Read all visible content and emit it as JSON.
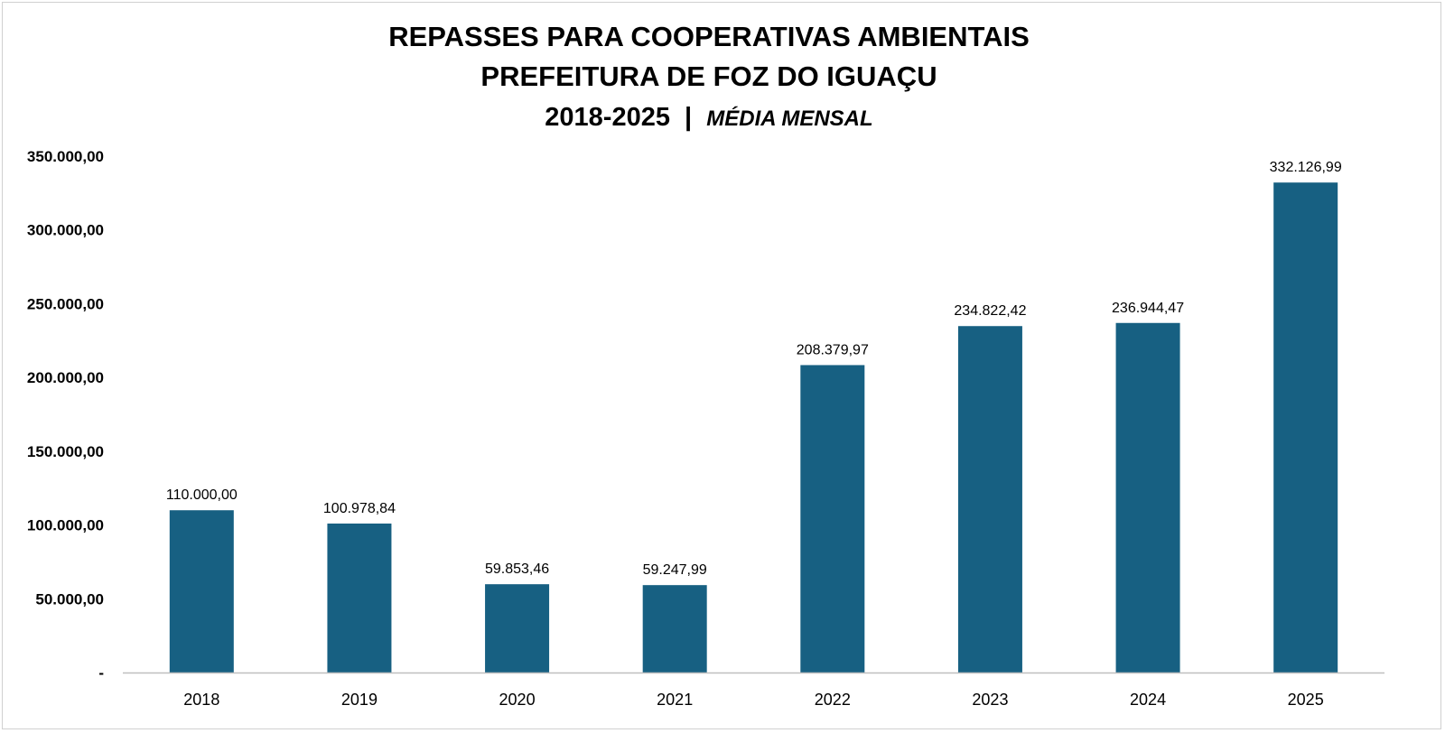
{
  "chart_data": {
    "type": "bar",
    "title": "REPASSES PARA COOPERATIVAS AMBIENTAIS",
    "subtitle": "PREFEITURA DE FOZ DO IGUAÇU",
    "subtitle2_main": "2018-2025",
    "subtitle2_sep": "|",
    "subtitle2_italic": "MÉDIA MENSAL",
    "categories": [
      "2018",
      "2019",
      "2020",
      "2021",
      "2022",
      "2023",
      "2024",
      "2025"
    ],
    "values": [
      110000.0,
      100978.84,
      59853.46,
      59247.99,
      208379.97,
      234822.42,
      236944.47,
      332126.99
    ],
    "data_labels": [
      "110.000,00",
      "100.978,84",
      "59.853,46",
      "59.247,99",
      "208.379,97",
      "234.822,42",
      "236.944,47",
      "332.126,99"
    ],
    "ylim": [
      0,
      350000
    ],
    "yticks": [
      0,
      50000,
      100000,
      150000,
      200000,
      250000,
      300000,
      350000
    ],
    "ytick_labels": [
      "-",
      "50.000,00",
      "100.000,00",
      "150.000,00",
      "200.000,00",
      "250.000,00",
      "300.000,00",
      "350.000,00"
    ],
    "bar_color": "#176082",
    "axis_color": "#bfbfbf",
    "grid": false,
    "legend": "none",
    "xlabel": "",
    "ylabel": ""
  }
}
